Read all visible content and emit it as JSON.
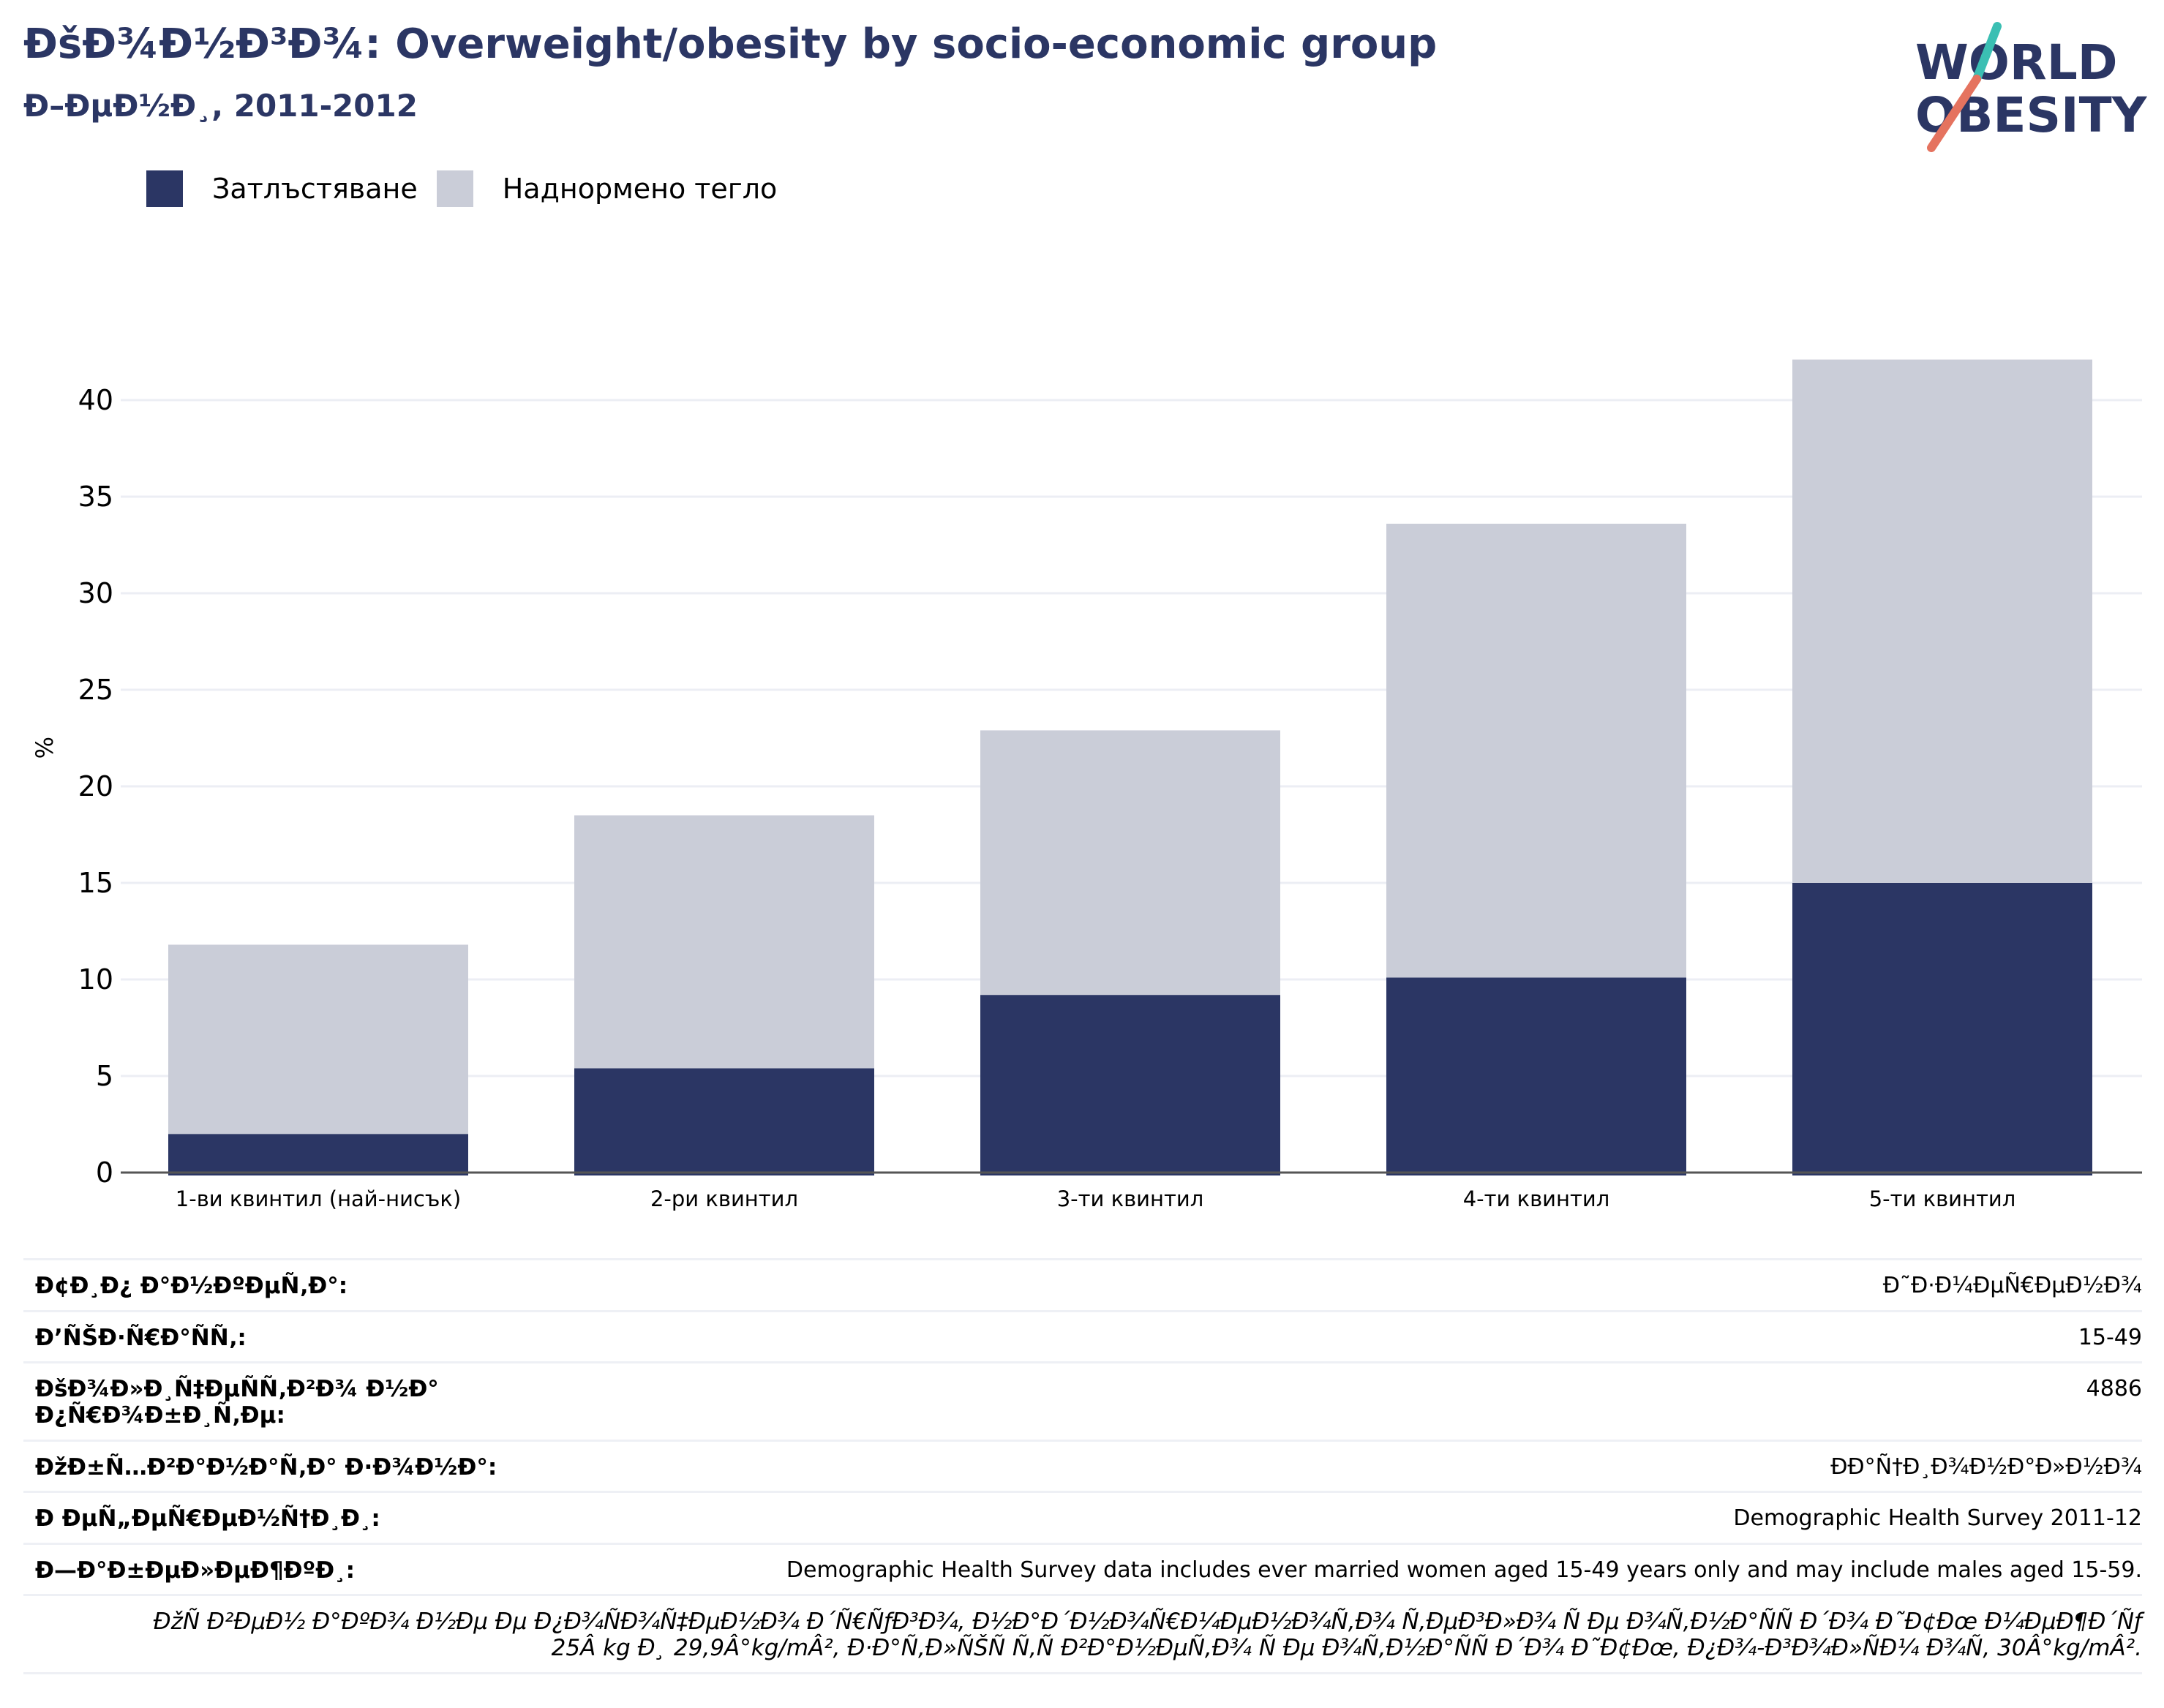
{
  "header": {
    "title": "ÐšÐ¾Ð½Ð³Ð¾: Overweight/obesity by socio-economic group",
    "subtitle": "Ð–ÐµÐ½Ð¸, 2011-2012"
  },
  "logo": {
    "line1": "WORLD",
    "line2": "OBESITY"
  },
  "colors": {
    "obesity": "#2b3664",
    "overweight": "#cacdd8",
    "axis": "#555555",
    "grid": "#eceef4",
    "brand_teal": "#3bbfb3",
    "brand_coral": "#e5735f"
  },
  "chart_data": {
    "type": "bar",
    "stacked": true,
    "categories": [
      "1-ви квинтил (най-нисък)",
      "2-ри квинтил",
      "3-ти квинтил",
      "4-ти квинтил",
      "5-ти квинтил"
    ],
    "series": [
      {
        "name": "Затлъстяване",
        "values": [
          2.0,
          5.4,
          9.2,
          10.1,
          15.0
        ]
      },
      {
        "name": "Наднормено тегло",
        "values": [
          9.8,
          13.1,
          13.7,
          23.5,
          27.1
        ]
      }
    ],
    "ylabel": "%",
    "xlabel": "",
    "ylim": [
      0,
      44
    ],
    "yticks": [
      0,
      5,
      10,
      15,
      20,
      25,
      30,
      35,
      40
    ],
    "grid": true,
    "legend": "top-left"
  },
  "meta": [
    {
      "label": "Ð¢Ð¸Ð¿ Ð°Ð½ÐºÐµÑ‚Ð°:",
      "value": "Ð˜Ð·Ð¼ÐµÑ€ÐµÐ½Ð¾"
    },
    {
      "label": "Ð’ÑŠÐ·Ñ€Ð°ÑÑ‚:",
      "value": "15-49"
    },
    {
      "label": "ÐšÐ¾Ð»Ð¸Ñ‡ÐµÑÑ‚Ð²Ð¾ Ð½Ð° Ð¿Ñ€Ð¾Ð±Ð¸Ñ‚Ðµ:",
      "value": "4886"
    },
    {
      "label": "ÐžÐ±Ñ…Ð²Ð°Ð½Ð°Ñ‚Ð° Ð·Ð¾Ð½Ð°:",
      "value": "ÐÐ°Ñ†Ð¸Ð¾Ð½Ð°Ð»Ð½Ð¾"
    },
    {
      "label": "Ð ÐµÑ„ÐµÑ€ÐµÐ½Ñ†Ð¸Ð¸:",
      "value": "Demographic Health Survey 2011-12"
    },
    {
      "label": "Ð—Ð°Ð±ÐµÐ»ÐµÐ¶ÐºÐ¸:",
      "value": "Demographic Health Survey data includes ever married women aged 15-49 years only and may include males aged 15-59."
    }
  ],
  "footnote": "ÐžÑ Ð²ÐµÐ½ Ð°ÐºÐ¾ Ð½Ðµ Ðµ Ð¿Ð¾ÑÐ¾Ñ‡ÐµÐ½Ð¾ Ð´Ñ€ÑƒÐ³Ð¾, Ð½Ð°Ð´Ð½Ð¾Ñ€Ð¼ÐµÐ½Ð¾Ñ‚Ð¾ Ñ‚ÐµÐ³Ð»Ð¾ Ñ Ðµ Ð¾Ñ‚Ð½Ð°ÑÑ Ð´Ð¾ Ð˜Ð¢Ðœ Ð¼ÐµÐ¶Ð´Ñƒ 25Â kg Ð¸ 29,9Â°kg/mÂ², Ð·Ð°Ñ‚Ð»ÑŠÑ Ñ‚Ñ Ð²Ð°Ð½ÐµÑ‚Ð¾ Ñ Ðµ Ð¾Ñ‚Ð½Ð°ÑÑ Ð´Ð¾ Ð˜Ð¢Ðœ, Ð¿Ð¾-Ð³Ð¾Ð»ÑÐ¼ Ð¾Ñ‚ 30Â°kg/mÂ²."
}
